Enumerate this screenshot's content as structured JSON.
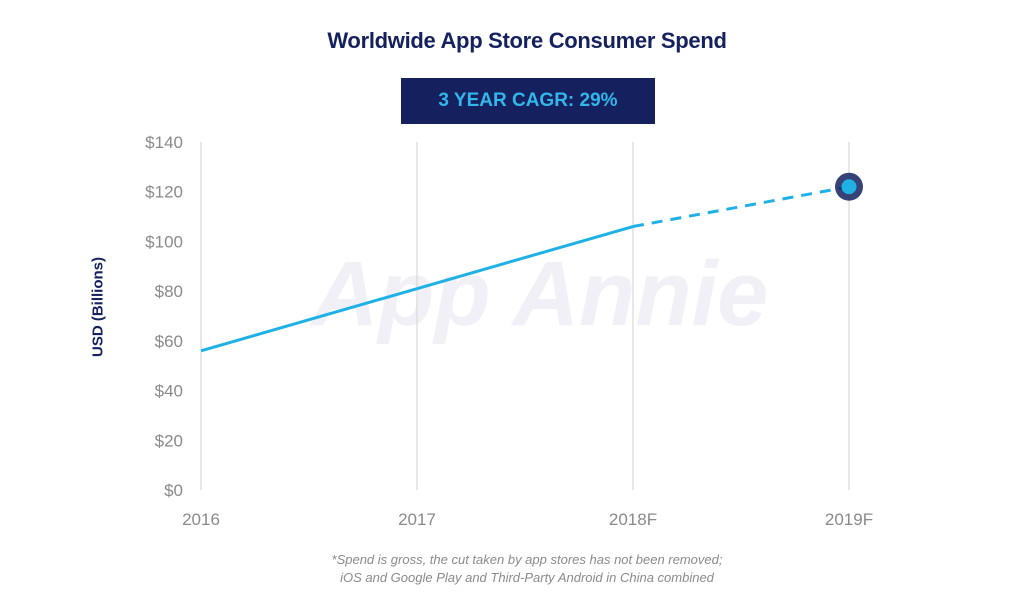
{
  "chart_data": {
    "type": "line",
    "title": "Worldwide App Store Consumer Spend",
    "badge": "3 YEAR CAGR: 29%",
    "ylabel": "USD (Billions)",
    "xlabel": "",
    "categories": [
      "2016",
      "2017",
      "2018F",
      "2019F"
    ],
    "y_ticks": [
      "$0",
      "$20",
      "$40",
      "$60",
      "$80",
      "$100",
      "$120",
      "$140"
    ],
    "ylim": [
      0,
      140
    ],
    "series": [
      {
        "values": [
          56,
          81,
          106,
          122
        ],
        "color": "#1fb1e6",
        "solid_through_index": 2,
        "dashed_from_index": 2,
        "end_marker_color": "#1fb1e6",
        "end_marker_ring": "#14215e"
      }
    ],
    "grid": {
      "vertical": true,
      "horizontal": false
    },
    "watermark": "App Annie",
    "footnote_lines": [
      "*Spend is gross, the cut taken by app stores has not been removed;",
      "iOS and Google Play and Third-Party Android in China combined"
    ]
  }
}
